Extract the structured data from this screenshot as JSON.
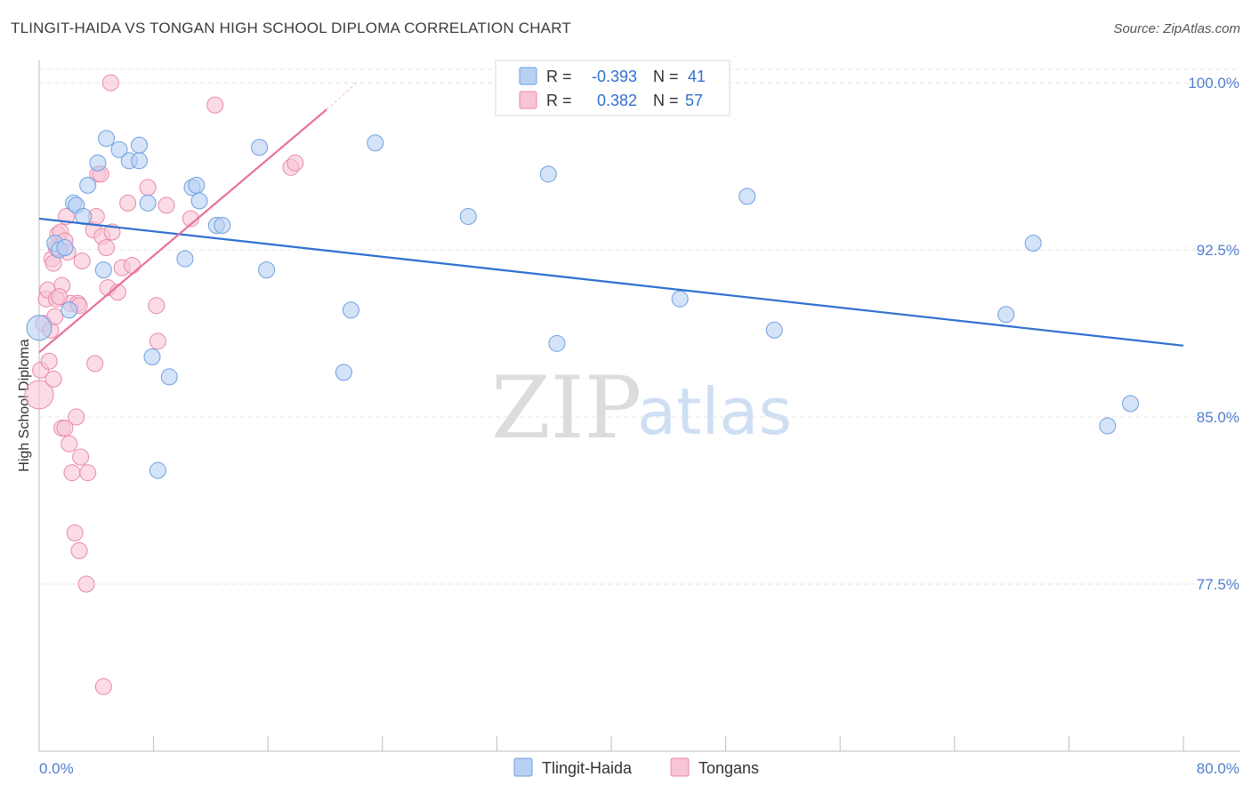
{
  "title": "TLINGIT-HAIDA VS TONGAN HIGH SCHOOL DIPLOMA CORRELATION CHART",
  "source": "Source: ZipAtlas.com",
  "watermark": {
    "zip": "ZIP",
    "atlas": "atlas"
  },
  "colors": {
    "blue_fill": "#b8d1f3",
    "blue_stroke": "#6f9fe0",
    "blue_line": "#2f6fd0",
    "pink_fill": "#f8c5d5",
    "pink_stroke": "#e889a6",
    "pink_line": "#e8709a",
    "grid": "#e4e4e4",
    "tick_text": "#4f7fd0"
  },
  "legend_top": {
    "rows": [
      {
        "r_label": "R =",
        "r_value": "-0.393",
        "n_label": "N =",
        "n_value": "41",
        "series": "blue"
      },
      {
        "r_label": "R =",
        "r_value": "0.382",
        "n_label": "N =",
        "n_value": "57",
        "series": "pink"
      }
    ]
  },
  "legend_bottom": {
    "items": [
      {
        "label": "Tlingit-Haida",
        "series": "blue"
      },
      {
        "label": "Tongans",
        "series": "pink"
      }
    ]
  },
  "chart_data": {
    "type": "scatter",
    "title": "TLINGIT-HAIDA VS TONGAN HIGH SCHOOL DIPLOMA CORRELATION CHART",
    "xlabel": "",
    "ylabel": "High School Diploma",
    "xlim": [
      0,
      80
    ],
    "ylim": [
      70.0,
      101.0
    ],
    "x_tick_labels": {
      "left": "0.0%",
      "right": "80.0%"
    },
    "y_ticks": [
      {
        "value": 100.0,
        "label": "100.0%"
      },
      {
        "value": 92.5,
        "label": "92.5%"
      },
      {
        "value": 85.0,
        "label": "85.0%"
      },
      {
        "value": 77.5,
        "label": "77.5%"
      }
    ],
    "series": [
      {
        "name": "Tlingit-Haida",
        "color": "blue",
        "trend": {
          "x0": 0,
          "y0": 93.9,
          "x1": 80,
          "y1": 88.2
        },
        "points": [
          [
            0.0,
            89.0,
            14
          ],
          [
            1.1,
            92.8,
            9
          ],
          [
            1.4,
            92.5,
            9
          ],
          [
            1.8,
            92.6,
            9
          ],
          [
            2.1,
            89.8,
            9
          ],
          [
            2.4,
            94.6,
            9
          ],
          [
            2.6,
            94.5,
            9
          ],
          [
            3.1,
            94.0,
            9
          ],
          [
            3.4,
            95.4,
            9
          ],
          [
            4.1,
            96.4,
            9
          ],
          [
            4.5,
            91.6,
            9
          ],
          [
            4.7,
            97.5,
            9
          ],
          [
            5.6,
            97.0,
            9
          ],
          [
            6.3,
            96.5,
            9
          ],
          [
            7.0,
            97.2,
            9
          ],
          [
            7.0,
            96.5,
            9
          ],
          [
            7.6,
            94.6,
            9
          ],
          [
            8.3,
            82.6,
            9
          ],
          [
            7.9,
            87.7,
            9
          ],
          [
            9.1,
            86.8,
            9
          ],
          [
            10.2,
            92.1,
            9
          ],
          [
            10.7,
            95.3,
            9
          ],
          [
            11.0,
            95.4,
            9
          ],
          [
            11.2,
            94.7,
            9
          ],
          [
            12.4,
            93.6,
            9
          ],
          [
            12.8,
            93.6,
            9
          ],
          [
            15.4,
            97.1,
            9
          ],
          [
            15.9,
            91.6,
            9
          ],
          [
            21.3,
            87.0,
            9
          ],
          [
            21.8,
            89.8,
            9
          ],
          [
            23.5,
            97.3,
            9
          ],
          [
            30.0,
            94.0,
            9
          ],
          [
            36.2,
            88.3,
            9
          ],
          [
            35.6,
            95.9,
            9
          ],
          [
            44.8,
            90.3,
            9
          ],
          [
            49.5,
            94.9,
            9
          ],
          [
            51.4,
            88.9,
            9
          ],
          [
            67.6,
            89.6,
            9
          ],
          [
            69.5,
            92.8,
            9
          ],
          [
            74.7,
            84.6,
            9
          ],
          [
            76.3,
            85.6,
            9
          ]
        ]
      },
      {
        "name": "Tongans",
        "color": "pink",
        "trend": {
          "x0": 0,
          "y0": 87.9,
          "x1": 20.1,
          "y1": 98.8,
          "dash_x1": 22.2,
          "dash_y1": 100.0
        },
        "points": [
          [
            0.0,
            86.0,
            16
          ],
          [
            0.1,
            87.1,
            9
          ],
          [
            0.3,
            89.2,
            9
          ],
          [
            0.5,
            90.3,
            9
          ],
          [
            0.6,
            90.7,
            9
          ],
          [
            0.7,
            87.5,
            9
          ],
          [
            0.8,
            88.9,
            9
          ],
          [
            0.9,
            92.1,
            9
          ],
          [
            1.0,
            86.7,
            9
          ],
          [
            1.0,
            91.9,
            9
          ],
          [
            1.1,
            89.5,
            9
          ],
          [
            1.2,
            90.3,
            9
          ],
          [
            1.2,
            92.6,
            9
          ],
          [
            1.3,
            93.2,
            9
          ],
          [
            1.5,
            93.3,
            9
          ],
          [
            1.6,
            84.5,
            9
          ],
          [
            1.6,
            90.9,
            9
          ],
          [
            1.8,
            84.5,
            9
          ],
          [
            1.8,
            92.9,
            9
          ],
          [
            1.9,
            94.0,
            9
          ],
          [
            2.0,
            92.4,
            9
          ],
          [
            2.1,
            83.8,
            9
          ],
          [
            2.2,
            90.1,
            9
          ],
          [
            2.3,
            82.5,
            9
          ],
          [
            2.5,
            79.8,
            9
          ],
          [
            2.6,
            85.0,
            9
          ],
          [
            2.7,
            90.1,
            9
          ],
          [
            2.8,
            79.0,
            9
          ],
          [
            2.9,
            83.2,
            9
          ],
          [
            3.0,
            92.0,
            9
          ],
          [
            3.3,
            77.5,
            9
          ],
          [
            3.4,
            82.5,
            9
          ],
          [
            3.8,
            93.4,
            9
          ],
          [
            3.9,
            87.4,
            9
          ],
          [
            4.0,
            94.0,
            9
          ],
          [
            4.1,
            95.9,
            9
          ],
          [
            4.3,
            95.9,
            9
          ],
          [
            4.4,
            93.1,
            9
          ],
          [
            4.5,
            72.9,
            9
          ],
          [
            4.7,
            92.6,
            9
          ],
          [
            4.8,
            90.8,
            9
          ],
          [
            5.0,
            100.0,
            9
          ],
          [
            5.1,
            93.3,
            9
          ],
          [
            5.5,
            90.6,
            9
          ],
          [
            5.8,
            91.7,
            9
          ],
          [
            6.2,
            94.6,
            9
          ],
          [
            6.5,
            91.8,
            9
          ],
          [
            7.6,
            95.3,
            9
          ],
          [
            8.2,
            90.0,
            9
          ],
          [
            8.3,
            88.4,
            9
          ],
          [
            8.9,
            94.5,
            9
          ],
          [
            10.6,
            93.9,
            9
          ],
          [
            12.3,
            99.0,
            9
          ],
          [
            17.6,
            96.2,
            9
          ],
          [
            17.9,
            96.4,
            9
          ],
          [
            1.4,
            90.4,
            9
          ],
          [
            2.8,
            90.0,
            9
          ]
        ]
      }
    ]
  }
}
